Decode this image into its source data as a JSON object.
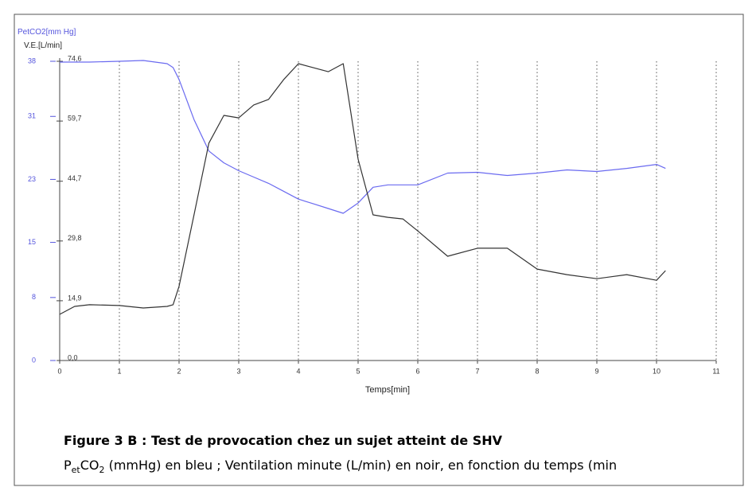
{
  "chart_data": {
    "type": "line",
    "y_label": "PetCO2[mm Hg]",
    "y2_label": "V.E.[L/min]",
    "x_label": "Temps[min]",
    "caption_title": "Figure  3 B : Test de provocation chez un sujet atteint de SHV",
    "caption_parts": [
      "P",
      "et",
      "CO",
      "2",
      " (mmHg) en bleu ; Ventilation minute (L/min) en noir,  en fonction du temps (min"
    ],
    "x": [
      0,
      0.25,
      0.5,
      1,
      1.4,
      1.8,
      1.9,
      2,
      2.25,
      2.5,
      2.75,
      3,
      3.25,
      3.5,
      3.75,
      4,
      4.25,
      4.5,
      4.75,
      5,
      5.25,
      5.5,
      5.75,
      6,
      6.5,
      7,
      7.5,
      8,
      8.5,
      9,
      9.5,
      10,
      10.15
    ],
    "series": [
      {
        "name": "PetCO2",
        "color": "#6a6af0",
        "axis": "y",
        "values": [
          37.9,
          37.9,
          37.9,
          38.0,
          38.1,
          37.7,
          37.2,
          35.7,
          30.6,
          26.6,
          25.1,
          24.1,
          23.3,
          22.5,
          21.5,
          20.5,
          19.9,
          19.3,
          18.7,
          20.0,
          22.0,
          22.3,
          22.3,
          22.3,
          23.8,
          23.9,
          23.5,
          23.8,
          24.2,
          24.0,
          24.4,
          24.9,
          24.4
        ]
      },
      {
        "name": "V.E.",
        "color": "#333333",
        "axis": "y2",
        "values": [
          11.5,
          13.5,
          13.9,
          13.7,
          13.1,
          13.5,
          13.9,
          18.5,
          36.3,
          54.2,
          61.1,
          60.5,
          63.7,
          65.1,
          70.0,
          74.0,
          73.0,
          72.0,
          74.0,
          50.2,
          36.3,
          35.7,
          35.3,
          32.3,
          26.0,
          28.0,
          28.0,
          22.8,
          21.4,
          20.4,
          21.4,
          20.0,
          22.4
        ]
      }
    ],
    "xlim": [
      0,
      11
    ],
    "xticks": [
      0,
      1,
      2,
      3,
      4,
      5,
      6,
      7,
      8,
      9,
      10,
      11
    ],
    "ylim": [
      0,
      38
    ],
    "yticks": [
      0,
      8,
      15,
      23,
      31,
      38
    ],
    "y_color": "#5555dd",
    "y2lim": [
      0,
      74.6
    ],
    "y2ticks": [
      {
        "value": 0,
        "label": "0,0"
      },
      {
        "value": 14.9,
        "label": "14,9"
      },
      {
        "value": 29.8,
        "label": "29,8"
      },
      {
        "value": 44.7,
        "label": "44,7"
      },
      {
        "value": 59.7,
        "label": "59,7"
      },
      {
        "value": 74.6,
        "label": "74,6"
      }
    ],
    "grid": "x"
  }
}
